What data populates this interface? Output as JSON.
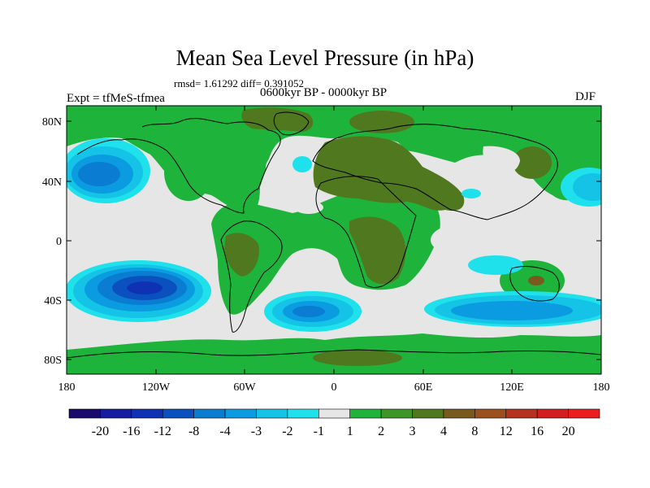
{
  "header": {
    "title": "Mean Sea Level Pressure (in hPa)",
    "stats": "rmsd= 1.61292 diff= 0.391052",
    "period": "0600kyr BP - 0000kyr BP",
    "expt": "Expt = tfMeS-tfmea",
    "season": "DJF"
  },
  "axes": {
    "lat_labels": [
      "80N",
      "40N",
      "0",
      "40S",
      "80S"
    ],
    "lon_labels": [
      "180",
      "120W",
      "60W",
      "0",
      "60E",
      "120E",
      "180"
    ]
  },
  "colorbar": {
    "labels": [
      "-20",
      "-16",
      "-12",
      "-8",
      "-4",
      "-3",
      "-2",
      "-1",
      "1",
      "2",
      "3",
      "4",
      "8",
      "12",
      "16",
      "20"
    ],
    "colors": [
      "#1a0a6e",
      "#151ea0",
      "#0f32b4",
      "#0a50be",
      "#0a7dd2",
      "#0a9be1",
      "#14c3e6",
      "#1ee1eb",
      "#e6e6e6",
      "#1eb43c",
      "#3c9628",
      "#50781e",
      "#785a1e",
      "#9b501e",
      "#b4321e",
      "#d21e1e",
      "#eb1e1e"
    ]
  },
  "map": {
    "colors": {
      "neutral": "#e6e6e6",
      "green": "#1eb43c",
      "dark_green": "#3c9628",
      "olive": "#50781e",
      "brown": "#785a1e",
      "light_cyan": "#1ee1eb",
      "cyan": "#14c3e6",
      "blue": "#0a9be1",
      "mid_blue": "#0a7dd2",
      "deep_blue": "#0a50be",
      "darker_blue": "#0f32b4"
    }
  }
}
